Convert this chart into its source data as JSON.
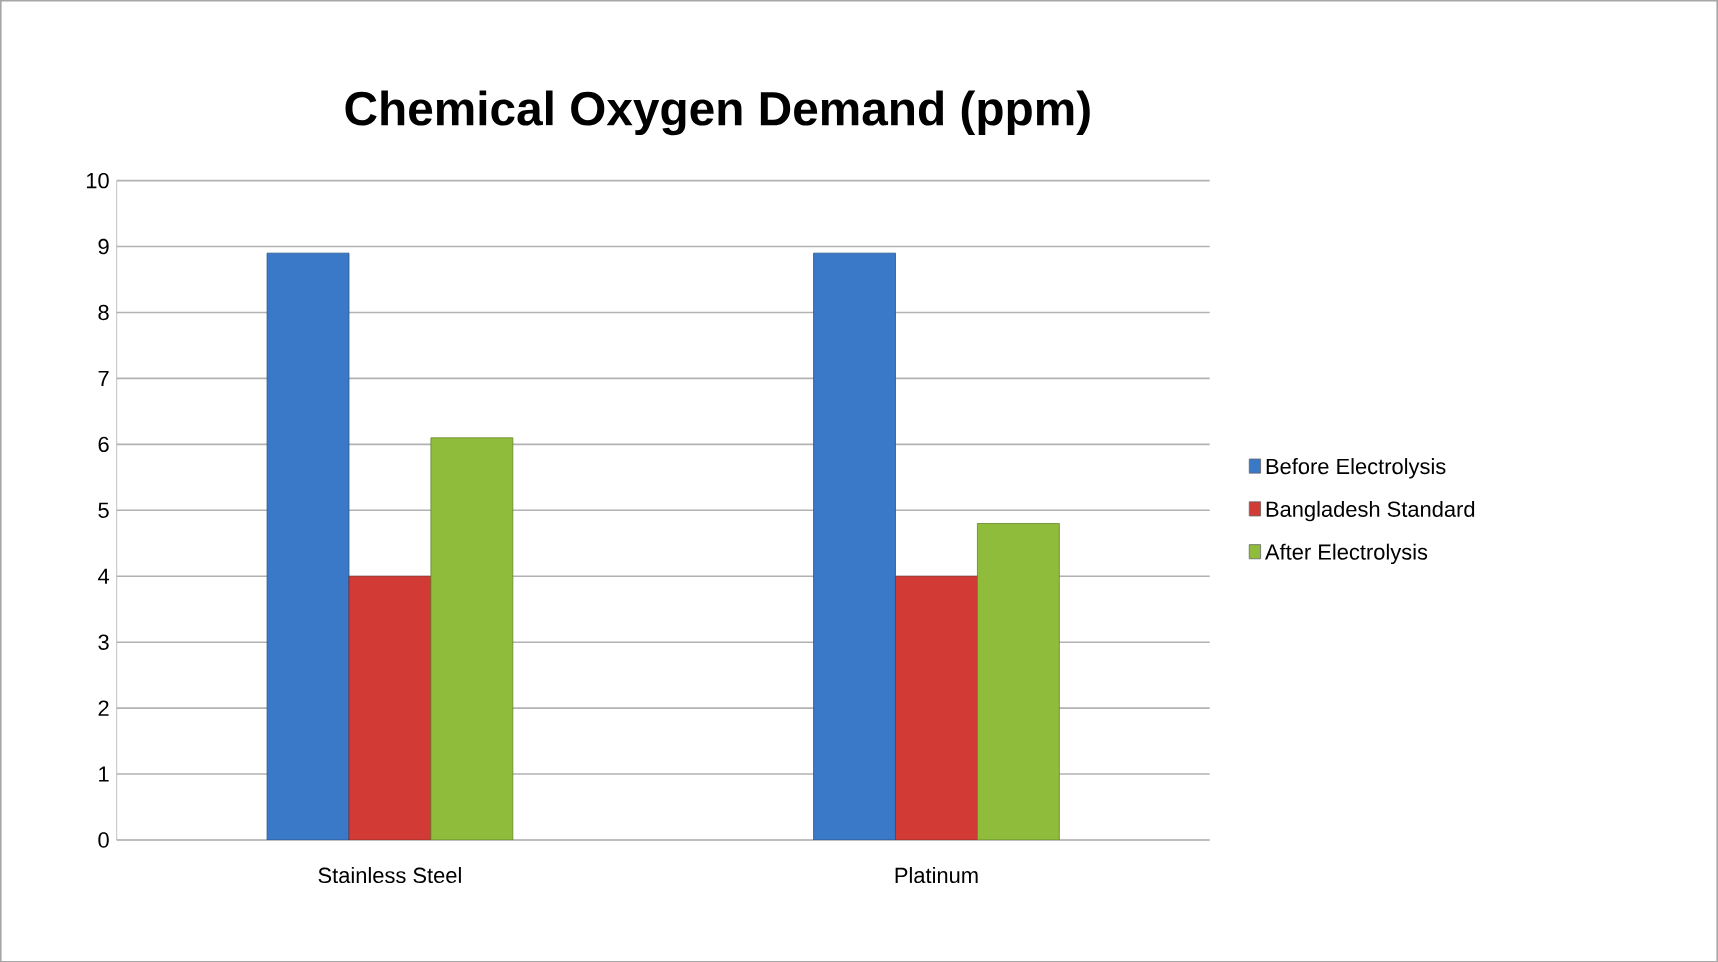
{
  "chart_data": {
    "type": "bar",
    "title": "Chemical Oxygen Demand (ppm)",
    "categories": [
      "Stainless Steel",
      "Platinum"
    ],
    "series": [
      {
        "name": "Before Electrolysis",
        "color": "#3a78c8",
        "values": [
          8.9,
          8.9
        ]
      },
      {
        "name": "Bangladesh Standard",
        "color": "#d23a36",
        "values": [
          4,
          4
        ]
      },
      {
        "name": "After Electrolysis",
        "color": "#8fbc3a",
        "values": [
          6.1,
          4.8
        ]
      }
    ],
    "ylim": [
      0,
      10
    ],
    "yticks": [
      0,
      1,
      2,
      3,
      4,
      5,
      6,
      7,
      8,
      9,
      10
    ],
    "grid": "y",
    "legend": "right"
  }
}
